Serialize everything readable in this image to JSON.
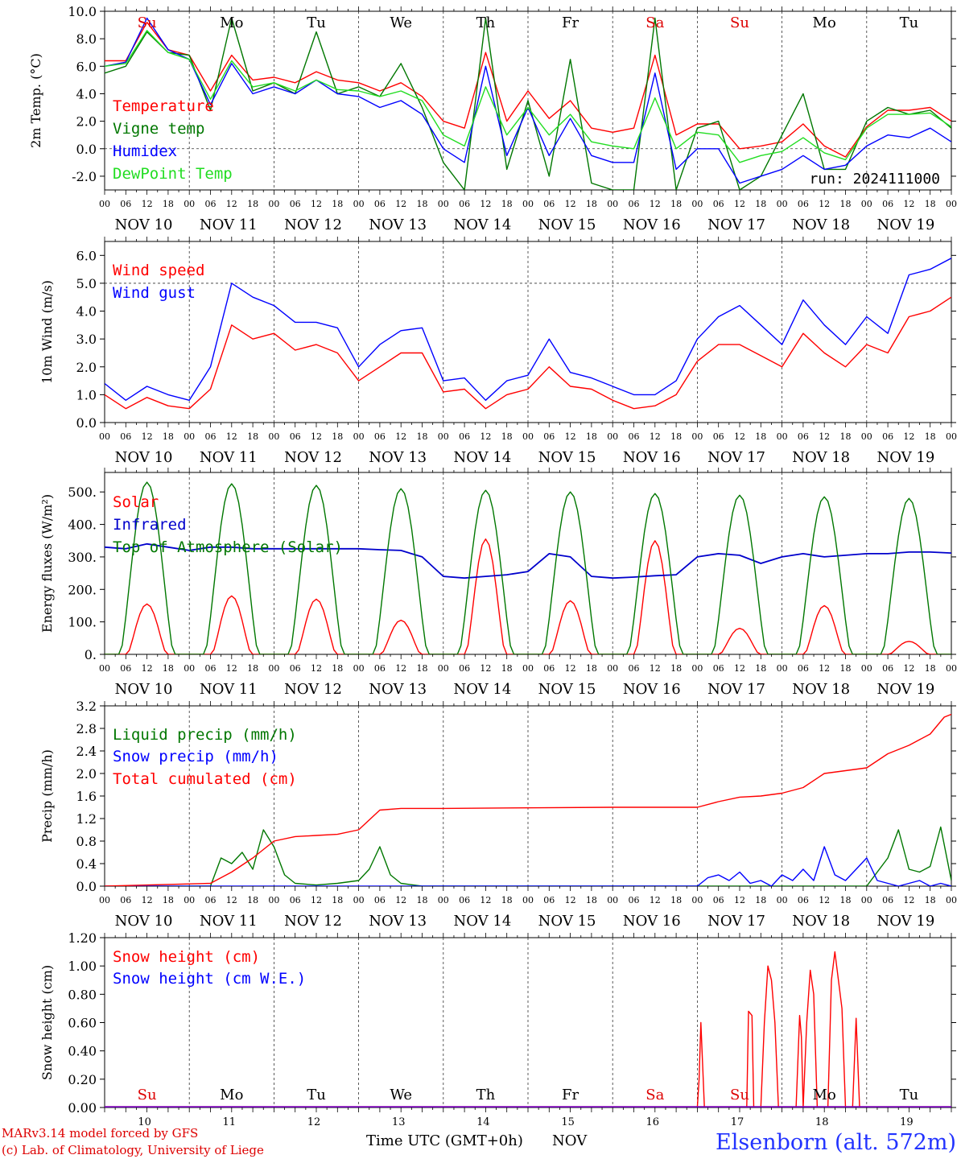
{
  "weekdays": [
    {
      "label": "Su",
      "color": "#dd0000"
    },
    {
      "label": "Mo",
      "color": "#000000"
    },
    {
      "label": "Tu",
      "color": "#000000"
    },
    {
      "label": "We",
      "color": "#000000"
    },
    {
      "label": "Th",
      "color": "#000000"
    },
    {
      "label": "Fr",
      "color": "#000000"
    },
    {
      "label": "Sa",
      "color": "#dd0000"
    },
    {
      "label": "Su",
      "color": "#dd0000"
    },
    {
      "label": "Mo",
      "color": "#000000"
    },
    {
      "label": "Tu",
      "color": "#000000"
    }
  ],
  "day_labels": [
    "NOV 10",
    "NOV 11",
    "NOV 12",
    "NOV 13",
    "NOV 14",
    "NOV 15",
    "NOV 16",
    "NOV 17",
    "NOV 18",
    "NOV 19"
  ],
  "hour_ticks": [
    "00",
    "06",
    "12",
    "18"
  ],
  "bottom_day_numbers": [
    "10",
    "11",
    "12",
    "13",
    "14",
    "15",
    "16",
    "17",
    "18",
    "19"
  ],
  "footer": {
    "credit1": "MARv3.14 model forced by GFS",
    "credit2": "(c) Lab. of Climatology, University of Liege",
    "xaxis": "Time UTC (GMT+0h)",
    "month": "NOV",
    "station": "Elsenborn (alt. 572m)"
  },
  "colors": {
    "red": "#ff0000",
    "green": "#007700",
    "blue": "#0000ff",
    "lightgreen": "#22dd22",
    "darkblue": "#0000cc",
    "grid": "#555555"
  },
  "chart_data": [
    {
      "type": "line",
      "ylabel": "2m Temp. (°C)",
      "ylim": [
        -3,
        10
      ],
      "yticks": [
        -2,
        0,
        2,
        4,
        6,
        8,
        10
      ],
      "ytick_labels": [
        "-2.0",
        "0.0",
        "2.0",
        "4.0",
        "6.0",
        "8.0",
        "10.0"
      ],
      "ref_line": 0,
      "annotation": "run: 2024111000",
      "series": [
        {
          "name": "Temperature",
          "color": "#ff0000",
          "x": [
            0,
            6,
            12,
            18,
            24,
            30,
            36,
            42,
            48,
            54,
            60,
            66,
            72,
            78,
            84,
            90,
            96,
            102,
            108,
            114,
            120,
            126,
            132,
            138,
            144,
            150,
            156,
            162,
            168,
            174,
            180,
            186,
            192,
            198,
            204,
            210,
            216,
            222,
            228,
            234,
            240
          ],
          "y": [
            6.4,
            6.4,
            9.2,
            7.2,
            6.8,
            4.2,
            6.8,
            5.0,
            5.2,
            4.8,
            5.6,
            5.0,
            4.8,
            4.2,
            4.8,
            3.8,
            2.0,
            1.5,
            7.0,
            2.0,
            4.2,
            2.2,
            3.5,
            1.5,
            1.2,
            1.5,
            6.8,
            1.0,
            1.8,
            1.8,
            0.0,
            0.2,
            0.5,
            1.8,
            0.2,
            -0.6,
            1.6,
            2.8,
            2.8,
            3.0,
            2.0
          ]
        },
        {
          "name": "Vigne temp",
          "color": "#007700",
          "x": [
            0,
            6,
            12,
            18,
            24,
            30,
            36,
            42,
            48,
            54,
            60,
            66,
            72,
            78,
            84,
            90,
            96,
            102,
            108,
            114,
            120,
            126,
            132,
            138,
            144,
            150,
            156,
            162,
            168,
            174,
            180,
            186,
            192,
            198,
            204,
            210,
            216,
            222,
            228,
            234,
            240
          ],
          "y": [
            5.5,
            6.0,
            8.5,
            7.0,
            6.8,
            2.8,
            9.5,
            4.2,
            4.8,
            4.0,
            8.5,
            4.0,
            4.5,
            3.8,
            6.2,
            3.0,
            -1.0,
            -3.0,
            9.5,
            -1.5,
            3.5,
            -2.0,
            6.5,
            -2.5,
            -3.0,
            -3.0,
            9.5,
            -3.0,
            1.5,
            2.0,
            -3.0,
            -2.0,
            1.0,
            4.0,
            -1.5,
            -1.5,
            2.0,
            3.0,
            2.5,
            2.8,
            1.5
          ]
        },
        {
          "name": "Humidex",
          "color": "#0000ff",
          "x": [
            0,
            6,
            12,
            18,
            24,
            30,
            36,
            42,
            48,
            54,
            60,
            66,
            72,
            78,
            84,
            90,
            96,
            102,
            108,
            114,
            120,
            126,
            132,
            138,
            144,
            150,
            156,
            162,
            168,
            174,
            180,
            186,
            192,
            198,
            204,
            210,
            216,
            222,
            228,
            234,
            240
          ],
          "y": [
            6.0,
            6.3,
            9.5,
            7.2,
            6.5,
            3.2,
            6.2,
            4.0,
            4.5,
            4.0,
            5.0,
            4.0,
            3.8,
            3.0,
            3.5,
            2.5,
            0.0,
            -1.0,
            6.0,
            -0.5,
            3.0,
            -0.5,
            2.2,
            -0.5,
            -1.0,
            -1.0,
            5.5,
            -1.5,
            0.0,
            0.0,
            -2.5,
            -2.0,
            -1.5,
            -0.5,
            -1.5,
            -1.2,
            0.2,
            1.0,
            0.8,
            1.5,
            0.5
          ]
        },
        {
          "name": "DewPoint Temp",
          "color": "#22dd22",
          "x": [
            0,
            6,
            12,
            18,
            24,
            30,
            36,
            42,
            48,
            54,
            60,
            66,
            72,
            78,
            84,
            90,
            96,
            102,
            108,
            114,
            120,
            126,
            132,
            138,
            144,
            150,
            156,
            162,
            168,
            174,
            180,
            186,
            192,
            198,
            204,
            210,
            216,
            222,
            228,
            234,
            240
          ],
          "y": [
            6.0,
            6.2,
            8.6,
            7.0,
            6.5,
            3.6,
            6.4,
            4.5,
            4.8,
            4.2,
            5.0,
            4.3,
            4.2,
            3.8,
            4.2,
            3.5,
            1.0,
            0.2,
            4.5,
            1.0,
            3.0,
            1.0,
            2.5,
            0.5,
            0.2,
            0.0,
            3.7,
            0.0,
            1.2,
            1.0,
            -1.0,
            -0.5,
            -0.2,
            0.8,
            -0.3,
            -0.8,
            1.5,
            2.5,
            2.5,
            2.6,
            1.6
          ]
        }
      ]
    },
    {
      "type": "line",
      "ylabel": "10m Wind (m/s)",
      "ylim": [
        0,
        6.5
      ],
      "yticks": [
        0,
        1,
        2,
        3,
        4,
        5,
        6
      ],
      "ytick_labels": [
        "0.0",
        "1.0",
        "2.0",
        "3.0",
        "4.0",
        "5.0",
        "6.0"
      ],
      "ref_line": 5,
      "series": [
        {
          "name": "Wind speed",
          "color": "#ff0000",
          "x": [
            0,
            6,
            12,
            18,
            24,
            30,
            36,
            42,
            48,
            54,
            60,
            66,
            72,
            78,
            84,
            90,
            96,
            102,
            108,
            114,
            120,
            126,
            132,
            138,
            144,
            150,
            156,
            162,
            168,
            174,
            180,
            186,
            192,
            198,
            204,
            210,
            216,
            222,
            228,
            234,
            240
          ],
          "y": [
            1.0,
            0.5,
            0.9,
            0.6,
            0.5,
            1.2,
            3.5,
            3.0,
            3.2,
            2.6,
            2.8,
            2.5,
            1.5,
            2.0,
            2.5,
            2.5,
            1.1,
            1.2,
            0.5,
            1.0,
            1.2,
            2.0,
            1.3,
            1.2,
            0.8,
            0.5,
            0.6,
            1.0,
            2.2,
            2.8,
            2.8,
            2.4,
            2.0,
            3.2,
            2.5,
            2.0,
            2.8,
            2.5,
            3.8,
            4.0,
            4.5
          ]
        },
        {
          "name": "Wind gust",
          "color": "#0000ff",
          "x": [
            0,
            6,
            12,
            18,
            24,
            30,
            36,
            42,
            48,
            54,
            60,
            66,
            72,
            78,
            84,
            90,
            96,
            102,
            108,
            114,
            120,
            126,
            132,
            138,
            144,
            150,
            156,
            162,
            168,
            174,
            180,
            186,
            192,
            198,
            204,
            210,
            216,
            222,
            228,
            234,
            240
          ],
          "y": [
            1.4,
            0.8,
            1.3,
            1.0,
            0.8,
            2.0,
            5.0,
            4.5,
            4.2,
            3.6,
            3.6,
            3.4,
            2.0,
            2.8,
            3.3,
            3.4,
            1.5,
            1.6,
            0.8,
            1.5,
            1.7,
            3.0,
            1.8,
            1.6,
            1.3,
            1.0,
            1.0,
            1.5,
            3.0,
            3.8,
            4.2,
            3.5,
            2.8,
            4.4,
            3.5,
            2.8,
            3.8,
            3.2,
            5.3,
            5.5,
            5.9
          ]
        }
      ]
    },
    {
      "type": "line",
      "ylabel": "Energy fluxes (W/m²)",
      "ylim": [
        0,
        560
      ],
      "yticks": [
        0,
        100,
        200,
        300,
        400,
        500
      ],
      "ytick_labels": [
        "0.",
        "100.",
        "200.",
        "300.",
        "400.",
        "500."
      ],
      "series": [
        {
          "name": "Solar",
          "color": "#ff0000",
          "days_peak": [
            155,
            180,
            170,
            105,
            355,
            165,
            350,
            80,
            150,
            40
          ]
        },
        {
          "name": "Infrared",
          "color": "#0000cc",
          "x": [
            0,
            6,
            12,
            18,
            24,
            30,
            36,
            42,
            48,
            54,
            60,
            66,
            72,
            78,
            84,
            90,
            96,
            102,
            108,
            114,
            120,
            126,
            132,
            138,
            144,
            150,
            156,
            162,
            168,
            174,
            180,
            186,
            192,
            198,
            204,
            210,
            216,
            222,
            228,
            234,
            240
          ],
          "y": [
            330,
            325,
            340,
            330,
            320,
            330,
            330,
            325,
            325,
            325,
            325,
            325,
            325,
            322,
            320,
            300,
            240,
            235,
            240,
            245,
            255,
            310,
            300,
            240,
            235,
            238,
            242,
            245,
            300,
            310,
            305,
            280,
            300,
            310,
            300,
            305,
            310,
            310,
            315,
            315,
            312
          ]
        },
        {
          "name": "Top of Atmosphere (Solar)",
          "color": "#007700",
          "days_peak": [
            530,
            525,
            520,
            510,
            505,
            500,
            495,
            490,
            485,
            480
          ]
        }
      ]
    },
    {
      "type": "line",
      "ylabel": "Precip (mm/h)",
      "ylim": [
        0,
        3.2
      ],
      "yticks": [
        0,
        0.4,
        0.8,
        1.2,
        1.6,
        2.0,
        2.4,
        2.8,
        3.2
      ],
      "ytick_labels": [
        "0.0",
        "0.4",
        "0.8",
        "1.2",
        "1.6",
        "2.0",
        "2.4",
        "2.8",
        "3.2"
      ],
      "series": [
        {
          "name": "Liquid precip (mm/h)",
          "color": "#007700",
          "x": [
            0,
            30,
            33,
            36,
            39,
            42,
            45,
            48,
            51,
            54,
            60,
            66,
            72,
            75,
            78,
            81,
            84,
            90,
            96,
            168,
            204,
            216,
            222,
            225,
            228,
            231,
            234,
            237,
            240
          ],
          "y": [
            0,
            0,
            0.5,
            0.4,
            0.6,
            0.3,
            1.0,
            0.7,
            0.2,
            0.05,
            0.02,
            0.05,
            0.1,
            0.3,
            0.7,
            0.2,
            0.05,
            0.0,
            0.0,
            0.0,
            0.0,
            0.0,
            0.5,
            1.0,
            0.3,
            0.25,
            0.35,
            1.05,
            0.1
          ]
        },
        {
          "name": "Snow precip (mm/h)",
          "color": "#0000ff",
          "x": [
            0,
            168,
            171,
            174,
            177,
            180,
            183,
            186,
            189,
            192,
            195,
            198,
            201,
            204,
            207,
            210,
            213,
            216,
            219,
            222,
            225,
            228,
            231,
            234,
            237,
            240
          ],
          "y": [
            0,
            0,
            0.15,
            0.2,
            0.1,
            0.25,
            0.05,
            0.1,
            0.0,
            0.2,
            0.1,
            0.3,
            0.1,
            0.7,
            0.2,
            0.1,
            0.3,
            0.5,
            0.1,
            0.05,
            0.0,
            0.05,
            0.1,
            0.0,
            0.05,
            0.0
          ]
        },
        {
          "name": "Total cumulated (cm)",
          "color": "#ff0000",
          "x": [
            0,
            30,
            36,
            42,
            48,
            54,
            60,
            66,
            72,
            78,
            84,
            90,
            96,
            120,
            144,
            168,
            174,
            180,
            186,
            192,
            198,
            204,
            210,
            216,
            222,
            228,
            234,
            238,
            240
          ],
          "y": [
            0,
            0.05,
            0.25,
            0.5,
            0.8,
            0.88,
            0.9,
            0.92,
            1.0,
            1.35,
            1.38,
            1.38,
            1.38,
            1.39,
            1.4,
            1.4,
            1.5,
            1.58,
            1.6,
            1.65,
            1.75,
            2.0,
            2.05,
            2.1,
            2.35,
            2.5,
            2.7,
            3.0,
            3.05
          ]
        }
      ]
    },
    {
      "type": "line",
      "ylabel": "Snow height (cm)",
      "ylim": [
        0,
        1.2
      ],
      "yticks": [
        0,
        0.2,
        0.4,
        0.6,
        0.8,
        1.0,
        1.2
      ],
      "ytick_labels": [
        "0.00",
        "0.20",
        "0.40",
        "0.60",
        "0.80",
        "1.00",
        "1.20"
      ],
      "series": [
        {
          "name": "Snow height (cm)",
          "color": "#ff0000",
          "x": [
            0,
            168,
            168.5,
            169,
            170,
            182,
            182.5,
            183.5,
            184,
            186,
            187,
            188,
            189,
            190,
            191,
            192,
            196,
            197,
            197.5,
            198,
            199,
            200,
            201,
            202,
            205,
            206,
            207,
            208,
            209,
            210,
            212,
            213,
            214,
            240
          ],
          "y": [
            0,
            0,
            0.2,
            0.6,
            0,
            0,
            0.68,
            0.65,
            0,
            0,
            0.6,
            1.0,
            0.9,
            0.6,
            0,
            0,
            0,
            0.65,
            0.5,
            0,
            0.6,
            0.97,
            0.8,
            0,
            0,
            0.9,
            1.1,
            0.9,
            0.7,
            0,
            0,
            0.63,
            0,
            0
          ]
        },
        {
          "name": "Snow height (cm W.E.)",
          "color": "#0000ff",
          "x": [
            0,
            240
          ],
          "y": [
            0,
            0
          ]
        }
      ]
    }
  ]
}
